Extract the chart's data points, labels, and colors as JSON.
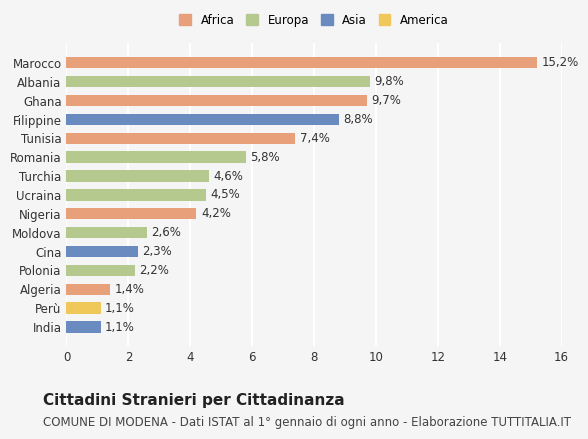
{
  "countries": [
    "India",
    "Perù",
    "Algeria",
    "Polonia",
    "Cina",
    "Moldova",
    "Nigeria",
    "Ucraina",
    "Turchia",
    "Romania",
    "Tunisia",
    "Filippine",
    "Ghana",
    "Albania",
    "Marocco"
  ],
  "values": [
    1.1,
    1.1,
    1.4,
    2.2,
    2.3,
    2.6,
    4.2,
    4.5,
    4.6,
    5.8,
    7.4,
    8.8,
    9.7,
    9.8,
    15.2
  ],
  "labels": [
    "1,1%",
    "1,1%",
    "1,4%",
    "2,2%",
    "2,3%",
    "2,6%",
    "4,2%",
    "4,5%",
    "4,6%",
    "5,8%",
    "7,4%",
    "8,8%",
    "9,7%",
    "9,8%",
    "15,2%"
  ],
  "colors": [
    "#6a8bbf",
    "#f0c85a",
    "#e8a07a",
    "#b5c98e",
    "#6a8bbf",
    "#b5c98e",
    "#e8a07a",
    "#b5c98e",
    "#b5c98e",
    "#b5c98e",
    "#e8a07a",
    "#6a8bbf",
    "#e8a07a",
    "#b5c98e",
    "#e8a07a"
  ],
  "legend": [
    {
      "label": "Africa",
      "color": "#e8a07a"
    },
    {
      "label": "Europa",
      "color": "#b5c98e"
    },
    {
      "label": "Asia",
      "color": "#6a8bbf"
    },
    {
      "label": "America",
      "color": "#f0c85a"
    }
  ],
  "xlim": [
    0,
    16
  ],
  "xticks": [
    0,
    2,
    4,
    6,
    8,
    10,
    12,
    14,
    16
  ],
  "title": "Cittadini Stranieri per Cittadinanza",
  "subtitle": "COMUNE DI MODENA - Dati ISTAT al 1° gennaio di ogni anno - Elaborazione TUTTITALIA.IT",
  "background_color": "#f5f5f5",
  "plot_background": "#f5f5f5",
  "grid_color": "#ffffff",
  "title_fontsize": 11,
  "subtitle_fontsize": 8.5,
  "label_fontsize": 8.5,
  "tick_fontsize": 8.5,
  "bar_height": 0.6
}
